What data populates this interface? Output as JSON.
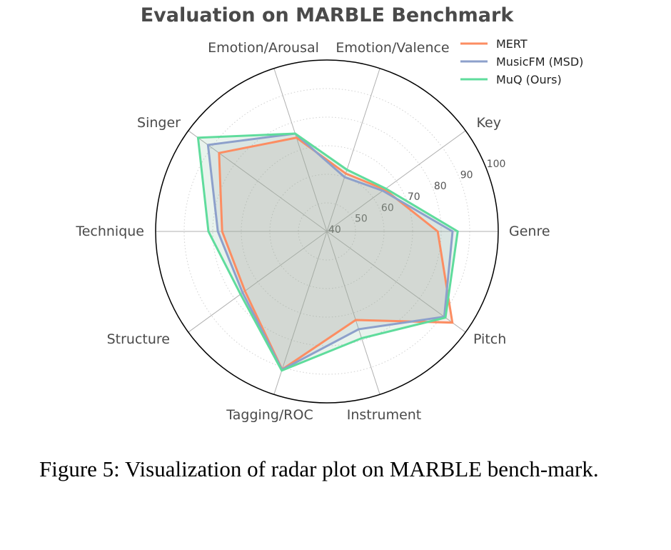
{
  "figure": {
    "caption": "Figure 5: Visualization of radar plot on MARBLE bench-mark."
  },
  "chart_data": {
    "type": "radar",
    "title": "Evaluation on MARBLE Benchmark",
    "categories": [
      "Genre",
      "Key",
      "Emotion/Valence",
      "Emotion/Arousal",
      "Singer",
      "Technique",
      "Structure",
      "Tagging/ROC",
      "Instrument",
      "Pitch"
    ],
    "series": [
      {
        "name": "MERT",
        "color": "#fc8d62",
        "values": [
          78.8,
          65.0,
          61.3,
          74.5,
          86.7,
          76.7,
          75.5,
          90.8,
          72.6,
          94.3
        ]
      },
      {
        "name": "MusicFM (MSD)",
        "color": "#8da0cb",
        "values": [
          84.0,
          64.2,
          60.0,
          76.0,
          91.5,
          78.2,
          76.5,
          90.9,
          76.0,
          90.8
        ]
      },
      {
        "name": "MuQ (Ours)",
        "color": "#5fdc9c",
        "values": [
          85.8,
          65.5,
          62.7,
          76.0,
          95.8,
          81.5,
          77.4,
          91.2,
          79.3,
          91.3
        ]
      }
    ],
    "rlim": [
      40,
      100
    ],
    "rticks": [
      40,
      50,
      60,
      70,
      80,
      90,
      100
    ],
    "grid": true,
    "legend_position": "upper right"
  }
}
